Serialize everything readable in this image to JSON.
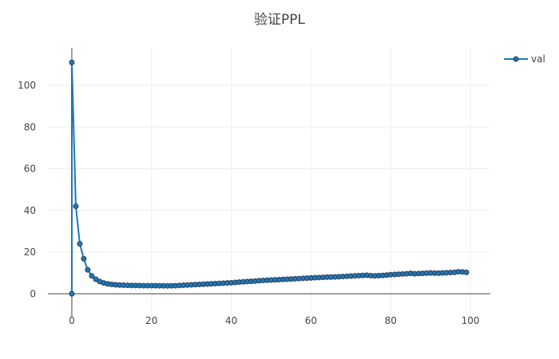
{
  "chart_data": {
    "type": "line",
    "title": "验证PPL",
    "xlabel": "",
    "ylabel": "",
    "xlim": [
      -6,
      105
    ],
    "ylim": [
      -11,
      118
    ],
    "xticks": [
      0,
      20,
      40,
      60,
      80,
      100
    ],
    "yticks": [
      0,
      20,
      40,
      60,
      80,
      100
    ],
    "grid": true,
    "legend_position": "top-right",
    "series": [
      {
        "name": "val",
        "color": "#1f77b4",
        "marker_edge_color": "#2a3f5f",
        "x": [
          0,
          0,
          1,
          2,
          3,
          4,
          5,
          6,
          7,
          8,
          9,
          10,
          11,
          12,
          13,
          14,
          15,
          16,
          17,
          18,
          19,
          20,
          21,
          22,
          23,
          24,
          25,
          26,
          27,
          28,
          29,
          30,
          31,
          32,
          33,
          34,
          35,
          36,
          37,
          38,
          39,
          40,
          41,
          42,
          43,
          44,
          45,
          46,
          47,
          48,
          49,
          50,
          51,
          52,
          53,
          54,
          55,
          56,
          57,
          58,
          59,
          60,
          61,
          62,
          63,
          64,
          65,
          66,
          67,
          68,
          69,
          70,
          71,
          72,
          73,
          74,
          75,
          76,
          77,
          78,
          79,
          80,
          81,
          82,
          83,
          84,
          85,
          86,
          87,
          88,
          89,
          90,
          91,
          92,
          93,
          94,
          95,
          96,
          97,
          98,
          99
        ],
        "y": [
          0,
          111,
          42,
          24,
          16.8,
          11.5,
          8.6,
          7.0,
          5.9,
          5.2,
          4.8,
          4.5,
          4.3,
          4.2,
          4.1,
          4.05,
          4.0,
          4.0,
          3.95,
          3.9,
          3.9,
          3.9,
          3.9,
          3.85,
          3.85,
          3.8,
          3.85,
          3.9,
          4.0,
          4.1,
          4.2,
          4.3,
          4.4,
          4.5,
          4.6,
          4.7,
          4.8,
          4.9,
          5.0,
          5.1,
          5.2,
          5.3,
          5.45,
          5.6,
          5.75,
          5.9,
          6.0,
          6.1,
          6.25,
          6.4,
          6.5,
          6.6,
          6.7,
          6.8,
          6.9,
          7.0,
          7.1,
          7.2,
          7.3,
          7.4,
          7.5,
          7.6,
          7.7,
          7.8,
          7.9,
          8.0,
          8.05,
          8.1,
          8.2,
          8.3,
          8.4,
          8.5,
          8.6,
          8.7,
          8.8,
          8.9,
          8.7,
          8.6,
          8.7,
          8.8,
          9.0,
          9.2,
          9.3,
          9.4,
          9.5,
          9.6,
          9.8,
          9.6,
          9.7,
          9.8,
          9.9,
          10.0,
          9.9,
          9.9,
          10.0,
          10.1,
          10.2,
          10.3,
          10.6,
          10.5,
          10.3
        ]
      }
    ]
  }
}
